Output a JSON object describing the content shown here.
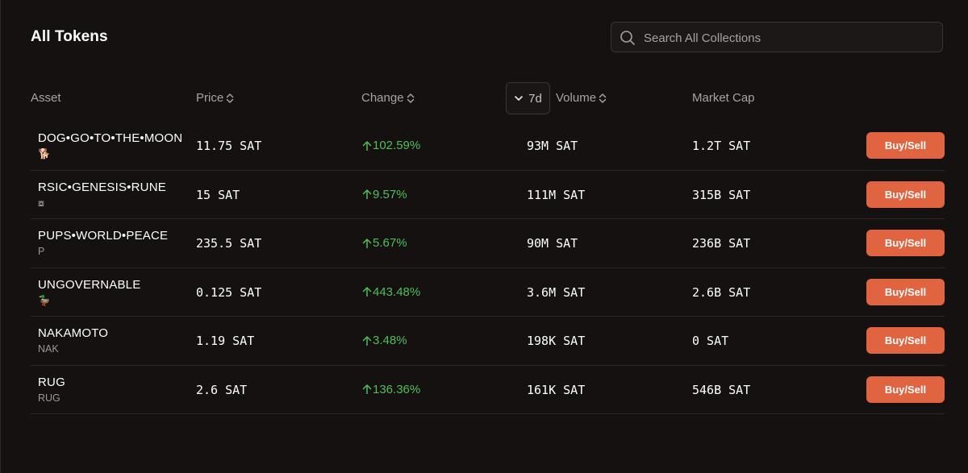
{
  "header": {
    "title": "All Tokens",
    "search_placeholder": "Search All Collections"
  },
  "columns": {
    "asset": "Asset",
    "price": "Price",
    "change": "Change",
    "period": "7d",
    "volume": "Volume",
    "market_cap": "Market Cap"
  },
  "colors": {
    "background": "#151111",
    "accent_button": "#e0643f",
    "positive": "#4fbf57"
  },
  "rows": [
    {
      "name": "DOG•GO•TO•THE•MOON",
      "symbol": "🐕",
      "price": "11.75 SAT",
      "change": "102.59%",
      "volume": "93M SAT",
      "market_cap": "1.2T SAT",
      "action": "Buy/Sell"
    },
    {
      "name": "RSIC•GENESIS•RUNE",
      "symbol": "⧇",
      "price": "15 SAT",
      "change": "9.57%",
      "volume": "111M SAT",
      "market_cap": "315B SAT",
      "action": "Buy/Sell"
    },
    {
      "name": "PUPS•WORLD•PEACE",
      "symbol": "P",
      "price": "235.5 SAT",
      "change": "5.67%",
      "volume": "90M SAT",
      "market_cap": "236B SAT",
      "action": "Buy/Sell"
    },
    {
      "name": "UNGOVERNABLE",
      "symbol": "🦆",
      "price": "0.125 SAT",
      "change": "443.48%",
      "volume": "3.6M SAT",
      "market_cap": "2.6B SAT",
      "action": "Buy/Sell"
    },
    {
      "name": "NAKAMOTO",
      "symbol": "NAK",
      "price": "1.19 SAT",
      "change": "3.48%",
      "volume": "198K SAT",
      "market_cap": "0 SAT",
      "action": "Buy/Sell"
    },
    {
      "name": "RUG",
      "symbol": "RUG",
      "price": "2.6 SAT",
      "change": "136.36%",
      "volume": "161K SAT",
      "market_cap": "546B SAT",
      "action": "Buy/Sell"
    }
  ]
}
